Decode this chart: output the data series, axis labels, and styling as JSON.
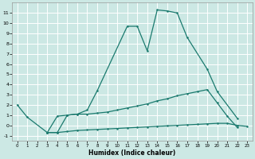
{
  "xlabel": "Humidex (Indice chaleur)",
  "background_color": "#cce8e4",
  "grid_color": "#ffffff",
  "line_color": "#1a7a6e",
  "xlim": [
    -0.5,
    23.5
  ],
  "ylim": [
    -1.5,
    12.0
  ],
  "xticks": [
    0,
    1,
    2,
    3,
    4,
    5,
    6,
    7,
    8,
    9,
    10,
    11,
    12,
    13,
    14,
    15,
    16,
    17,
    18,
    19,
    20,
    21,
    22,
    23
  ],
  "yticks": [
    -1,
    0,
    1,
    2,
    3,
    4,
    5,
    6,
    7,
    8,
    9,
    10,
    11
  ],
  "main_x": [
    0,
    1,
    3,
    4,
    5,
    6,
    7,
    8,
    11,
    12,
    13,
    14,
    15,
    16,
    17,
    19,
    20,
    22
  ],
  "main_y": [
    2.0,
    0.8,
    -0.7,
    -0.7,
    1.0,
    1.1,
    1.5,
    3.4,
    9.7,
    9.7,
    7.3,
    11.3,
    11.2,
    11.0,
    8.6,
    5.5,
    3.3,
    0.7
  ],
  "line2_x": [
    3,
    4,
    5,
    6,
    7,
    8,
    9,
    10,
    11,
    12,
    13,
    14,
    15,
    16,
    17,
    18,
    19,
    20,
    21,
    22
  ],
  "line2_y": [
    -0.7,
    0.9,
    1.0,
    1.1,
    1.1,
    1.2,
    1.3,
    1.5,
    1.7,
    1.9,
    2.1,
    2.4,
    2.6,
    2.9,
    3.1,
    3.3,
    3.5,
    2.2,
    0.9,
    -0.2
  ],
  "line3_x": [
    3,
    4,
    5,
    6,
    7,
    8,
    9,
    10,
    11,
    12,
    13,
    14,
    15,
    16,
    17,
    18,
    19,
    20,
    21,
    22,
    23
  ],
  "line3_y": [
    -0.7,
    -0.7,
    -0.6,
    -0.5,
    -0.45,
    -0.4,
    -0.35,
    -0.3,
    -0.25,
    -0.2,
    -0.15,
    -0.1,
    -0.05,
    0.0,
    0.05,
    0.1,
    0.15,
    0.2,
    0.2,
    0.0,
    -0.1
  ]
}
